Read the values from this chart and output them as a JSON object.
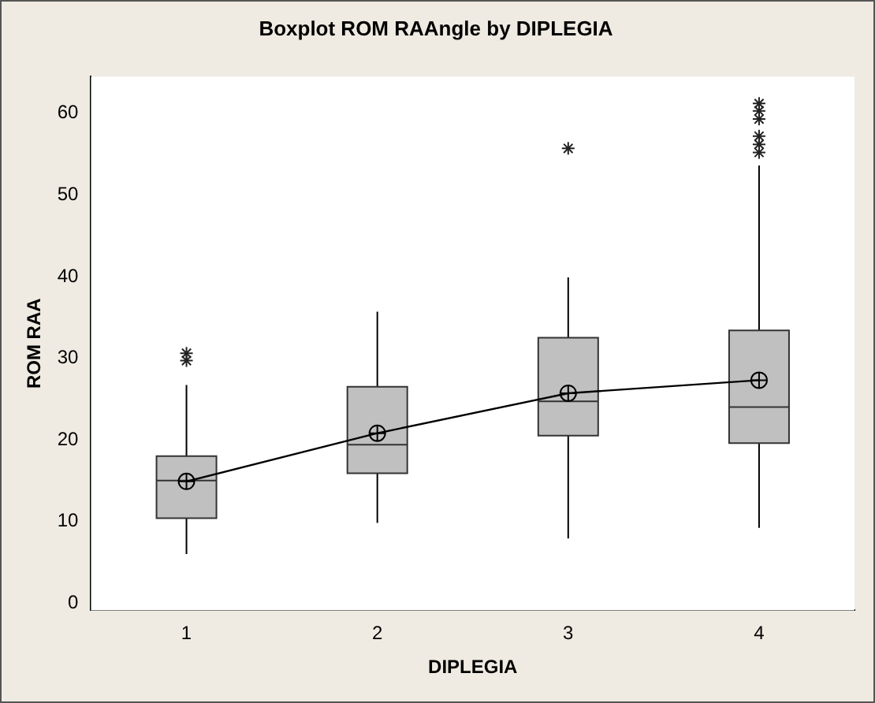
{
  "chart_data": {
    "type": "box",
    "title": "Boxplot ROM RAAngle by DIPLEGIA",
    "xlabel": "DIPLEGIA",
    "ylabel": "ROM RAA",
    "categories": [
      "1",
      "2",
      "3",
      "4"
    ],
    "ylim": [
      -0.9,
      64.5
    ],
    "yticks": [
      0,
      10,
      20,
      30,
      40,
      50,
      60
    ],
    "grid": false,
    "legend": false,
    "series": [
      {
        "color": "#c0c0c0",
        "boxes": [
          {
            "low": 6.0,
            "q1": 10.4,
            "median": 15.0,
            "q3": 18.0,
            "high": 26.7,
            "mean": 14.9,
            "outliers": [
              29.7,
              30.6
            ]
          },
          {
            "low": 9.8,
            "q1": 15.9,
            "median": 19.4,
            "q3": 26.5,
            "high": 35.7,
            "mean": 20.8
          },
          {
            "low": 7.9,
            "q1": 20.5,
            "median": 24.7,
            "q3": 32.5,
            "high": 39.9,
            "mean": 25.7,
            "outliers": [
              55.7
            ]
          },
          {
            "low": 9.2,
            "q1": 19.6,
            "median": 24.0,
            "q3": 33.4,
            "high": 53.6,
            "mean": 27.3,
            "outliers": [
              55.2,
              56.2,
              57.2,
              59.3,
              60.3,
              61.2
            ]
          }
        ]
      },
      {
        "type": "line",
        "color": "#000000",
        "values": [
          14.9,
          20.8,
          25.7,
          27.3
        ],
        "marker": "none"
      }
    ]
  }
}
